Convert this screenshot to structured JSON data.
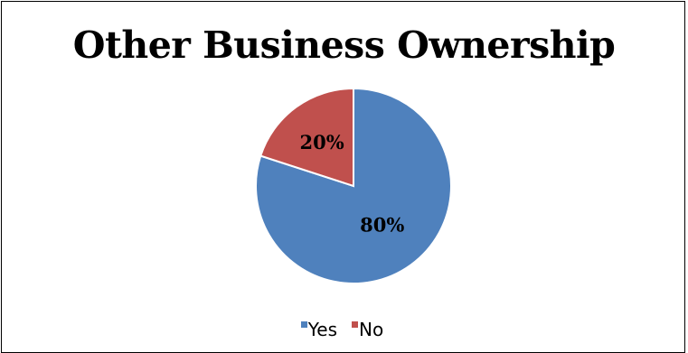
{
  "chart_data": {
    "type": "pie",
    "title": "Other Business Ownership",
    "categories": [
      "Yes",
      "No"
    ],
    "values": [
      80,
      20
    ],
    "data_labels": [
      "80%",
      "20%"
    ],
    "colors": [
      "#4f81bd",
      "#c0504d"
    ],
    "legend_position": "bottom"
  }
}
